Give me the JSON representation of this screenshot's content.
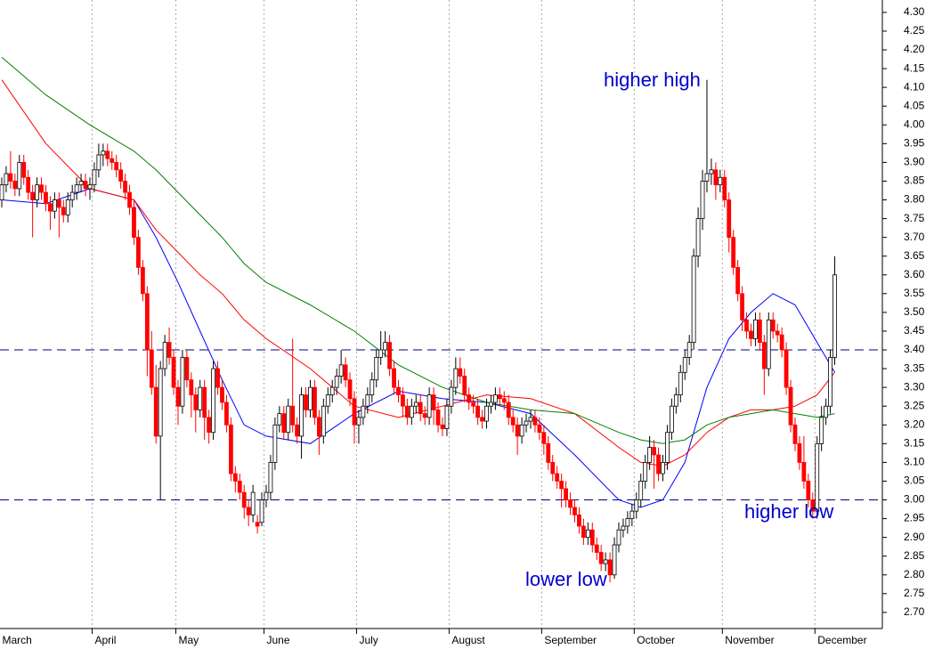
{
  "chart_data": {
    "type": "candlestick",
    "annotations": [
      "higher high",
      "lower low",
      "higher low"
    ],
    "xlim": [
      -0.4,
      199.6
    ],
    "ylim": [
      2.657,
      4.333
    ],
    "xticks": [
      {
        "value": -0.5,
        "label": "March"
      },
      {
        "value": 20.5,
        "label": "April"
      },
      {
        "value": 39.5,
        "label": "May"
      },
      {
        "value": 59.5,
        "label": "June"
      },
      {
        "value": 80.5,
        "label": "July"
      },
      {
        "value": 101.5,
        "label": "August"
      },
      {
        "value": 122.5,
        "label": "September"
      },
      {
        "value": 143.5,
        "label": "October"
      },
      {
        "value": 163.5,
        "label": "November"
      },
      {
        "value": 184.5,
        "label": "December"
      }
    ],
    "yticks": [
      {
        "value": 2.7,
        "label": "2.70"
      },
      {
        "value": 2.75,
        "label": "2.75"
      },
      {
        "value": 2.8,
        "label": "2.80"
      },
      {
        "value": 2.85,
        "label": "2.85"
      },
      {
        "value": 2.9,
        "label": "2.90"
      },
      {
        "value": 2.95,
        "label": "2.95"
      },
      {
        "value": 3.0,
        "label": "3.00"
      },
      {
        "value": 3.05,
        "label": "3.05"
      },
      {
        "value": 3.1,
        "label": "3.10"
      },
      {
        "value": 3.15,
        "label": "3.15"
      },
      {
        "value": 3.2,
        "label": "3.20"
      },
      {
        "value": 3.25,
        "label": "3.25"
      },
      {
        "value": 3.3,
        "label": "3.30"
      },
      {
        "value": 3.35,
        "label": "3.35"
      },
      {
        "value": 3.4,
        "label": "3.40"
      },
      {
        "value": 3.45,
        "label": "3.45"
      },
      {
        "value": 3.5,
        "label": "3.50"
      },
      {
        "value": 3.55,
        "label": "3.55"
      },
      {
        "value": 3.6,
        "label": "3.60"
      },
      {
        "value": 3.65,
        "label": "3.65"
      },
      {
        "value": 3.7,
        "label": "3.70"
      },
      {
        "value": 3.75,
        "label": "3.75"
      },
      {
        "value": 3.8,
        "label": "3.80"
      },
      {
        "value": 3.85,
        "label": "3.85"
      },
      {
        "value": 3.9,
        "label": "3.90"
      },
      {
        "value": 3.95,
        "label": "3.95"
      },
      {
        "value": 4.0,
        "label": "4.00"
      },
      {
        "value": 4.05,
        "label": "4.05"
      },
      {
        "value": 4.1,
        "label": "4.10"
      },
      {
        "value": 4.15,
        "label": "4.15"
      },
      {
        "value": 4.2,
        "label": "4.20"
      },
      {
        "value": 4.25,
        "label": "4.25"
      },
      {
        "value": 4.3,
        "label": "4.30"
      }
    ],
    "hlines": [
      3.4,
      3.0
    ],
    "hline_color": "#000080",
    "up_color": "#ffffff",
    "down_color": "#ff0000",
    "grid": true,
    "candles": [
      [
        3.8,
        3.86,
        3.78,
        3.84
      ],
      [
        3.84,
        3.89,
        3.82,
        3.87
      ],
      [
        3.87,
        3.93,
        3.83,
        3.85
      ],
      [
        3.85,
        3.87,
        3.81,
        3.83
      ],
      [
        3.83,
        3.92,
        3.81,
        3.9
      ],
      [
        3.9,
        3.92,
        3.84,
        3.86
      ],
      [
        3.86,
        3.88,
        3.8,
        3.82
      ],
      [
        3.82,
        3.84,
        3.7,
        3.8
      ],
      [
        3.8,
        3.86,
        3.78,
        3.84
      ],
      [
        3.84,
        3.86,
        3.8,
        3.82
      ],
      [
        3.82,
        3.84,
        3.77,
        3.79
      ],
      [
        3.79,
        3.81,
        3.72,
        3.77
      ],
      [
        3.77,
        3.82,
        3.75,
        3.8
      ],
      [
        3.8,
        3.82,
        3.7,
        3.78
      ],
      [
        3.78,
        3.8,
        3.74,
        3.76
      ],
      [
        3.76,
        3.82,
        3.74,
        3.8
      ],
      [
        3.8,
        3.84,
        3.78,
        3.82
      ],
      [
        3.82,
        3.86,
        3.8,
        3.84
      ],
      [
        3.84,
        3.87,
        3.82,
        3.85
      ],
      [
        3.85,
        3.87,
        3.81,
        3.83
      ],
      [
        3.83,
        3.86,
        3.8,
        3.84
      ],
      [
        3.84,
        3.9,
        3.82,
        3.88
      ],
      [
        3.88,
        3.95,
        3.86,
        3.92
      ],
      [
        3.92,
        3.95,
        3.89,
        3.93
      ],
      [
        3.93,
        3.95,
        3.89,
        3.91
      ],
      [
        3.91,
        3.93,
        3.88,
        3.9
      ],
      [
        3.9,
        3.92,
        3.86,
        3.88
      ],
      [
        3.88,
        3.9,
        3.83,
        3.85
      ],
      [
        3.85,
        3.87,
        3.8,
        3.82
      ],
      [
        3.82,
        3.84,
        3.76,
        3.78
      ],
      [
        3.78,
        3.8,
        3.68,
        3.7
      ],
      [
        3.7,
        3.72,
        3.6,
        3.62
      ],
      [
        3.62,
        3.64,
        3.53,
        3.55
      ],
      [
        3.55,
        3.57,
        3.33,
        3.4
      ],
      [
        3.4,
        3.45,
        3.28,
        3.3
      ],
      [
        3.3,
        3.36,
        3.15,
        3.17
      ],
      [
        3.17,
        3.37,
        3.0,
        3.35
      ],
      [
        3.35,
        3.44,
        3.33,
        3.42
      ],
      [
        3.42,
        3.46,
        3.36,
        3.38
      ],
      [
        3.38,
        3.4,
        3.28,
        3.3
      ],
      [
        3.3,
        3.32,
        3.2,
        3.25
      ],
      [
        3.25,
        3.4,
        3.23,
        3.38
      ],
      [
        3.38,
        3.4,
        3.3,
        3.32
      ],
      [
        3.32,
        3.34,
        3.22,
        3.28
      ],
      [
        3.28,
        3.3,
        3.18,
        3.24
      ],
      [
        3.24,
        3.32,
        3.22,
        3.3
      ],
      [
        3.3,
        3.32,
        3.16,
        3.22
      ],
      [
        3.22,
        3.24,
        3.15,
        3.18
      ],
      [
        3.18,
        3.37,
        3.16,
        3.35
      ],
      [
        3.35,
        3.37,
        3.28,
        3.3
      ],
      [
        3.3,
        3.32,
        3.24,
        3.26
      ],
      [
        3.26,
        3.28,
        3.18,
        3.2
      ],
      [
        3.2,
        3.22,
        3.05,
        3.07
      ],
      [
        3.07,
        3.09,
        3.02,
        3.05
      ],
      [
        3.05,
        3.07,
        3.0,
        3.02
      ],
      [
        3.02,
        3.04,
        2.95,
        2.98
      ],
      [
        2.98,
        3.0,
        2.93,
        2.96
      ],
      [
        2.96,
        3.04,
        2.94,
        3.02
      ],
      [
        2.94,
        2.96,
        2.91,
        2.93
      ],
      [
        2.94,
        3.02,
        2.93,
        3.0
      ],
      [
        3.0,
        3.04,
        2.98,
        3.02
      ],
      [
        3.02,
        3.12,
        3.0,
        3.1
      ],
      [
        3.1,
        3.22,
        3.08,
        3.2
      ],
      [
        3.2,
        3.25,
        3.18,
        3.23
      ],
      [
        3.23,
        3.25,
        3.16,
        3.18
      ],
      [
        3.18,
        3.27,
        3.16,
        3.25
      ],
      [
        3.25,
        3.43,
        3.18,
        3.2
      ],
      [
        3.2,
        3.22,
        3.15,
        3.17
      ],
      [
        3.17,
        3.3,
        3.11,
        3.28
      ],
      [
        3.28,
        3.3,
        3.22,
        3.24
      ],
      [
        3.24,
        3.32,
        3.22,
        3.3
      ],
      [
        3.3,
        3.32,
        3.2,
        3.22
      ],
      [
        3.22,
        3.24,
        3.12,
        3.17
      ],
      [
        3.17,
        3.27,
        3.15,
        3.25
      ],
      [
        3.25,
        3.3,
        3.23,
        3.28
      ],
      [
        3.28,
        3.32,
        3.26,
        3.3
      ],
      [
        3.3,
        3.35,
        3.28,
        3.33
      ],
      [
        3.33,
        3.4,
        3.31,
        3.36
      ],
      [
        3.36,
        3.38,
        3.3,
        3.32
      ],
      [
        3.32,
        3.34,
        3.25,
        3.27
      ],
      [
        3.27,
        3.29,
        3.15,
        3.2
      ],
      [
        3.2,
        3.24,
        3.15,
        3.22
      ],
      [
        3.22,
        3.27,
        3.2,
        3.25
      ],
      [
        3.25,
        3.3,
        3.23,
        3.28
      ],
      [
        3.28,
        3.34,
        3.26,
        3.32
      ],
      [
        3.32,
        3.4,
        3.3,
        3.38
      ],
      [
        3.38,
        3.45,
        3.36,
        3.4
      ],
      [
        3.4,
        3.45,
        3.38,
        3.42
      ],
      [
        3.42,
        3.44,
        3.33,
        3.35
      ],
      [
        3.35,
        3.37,
        3.28,
        3.3
      ],
      [
        3.3,
        3.32,
        3.26,
        3.28
      ],
      [
        3.28,
        3.3,
        3.22,
        3.25
      ],
      [
        3.25,
        3.27,
        3.2,
        3.22
      ],
      [
        3.22,
        3.27,
        3.2,
        3.25
      ],
      [
        3.25,
        3.28,
        3.23,
        3.26
      ],
      [
        3.26,
        3.28,
        3.21,
        3.23
      ],
      [
        3.23,
        3.25,
        3.2,
        3.22
      ],
      [
        3.22,
        3.3,
        3.2,
        3.28
      ],
      [
        3.28,
        3.3,
        3.2,
        3.24
      ],
      [
        3.24,
        3.26,
        3.18,
        3.2
      ],
      [
        3.2,
        3.22,
        3.17,
        3.19
      ],
      [
        3.19,
        3.27,
        3.17,
        3.25
      ],
      [
        3.25,
        3.32,
        3.23,
        3.3
      ],
      [
        3.3,
        3.38,
        3.28,
        3.35
      ],
      [
        3.35,
        3.38,
        3.31,
        3.33
      ],
      [
        3.33,
        3.35,
        3.26,
        3.28
      ],
      [
        3.28,
        3.3,
        3.24,
        3.26
      ],
      [
        3.26,
        3.28,
        3.23,
        3.25
      ],
      [
        3.25,
        3.27,
        3.2,
        3.22
      ],
      [
        3.22,
        3.24,
        3.19,
        3.21
      ],
      [
        3.21,
        3.27,
        3.19,
        3.25
      ],
      [
        3.25,
        3.28,
        3.23,
        3.26
      ],
      [
        3.26,
        3.3,
        3.24,
        3.28
      ],
      [
        3.28,
        3.3,
        3.25,
        3.27
      ],
      [
        3.27,
        3.29,
        3.24,
        3.26
      ],
      [
        3.26,
        3.28,
        3.2,
        3.22
      ],
      [
        3.22,
        3.24,
        3.18,
        3.2
      ],
      [
        3.2,
        3.22,
        3.12,
        3.17
      ],
      [
        3.17,
        3.22,
        3.15,
        3.2
      ],
      [
        3.2,
        3.23,
        3.18,
        3.21
      ],
      [
        3.21,
        3.24,
        3.19,
        3.22
      ],
      [
        3.22,
        3.24,
        3.18,
        3.2
      ],
      [
        3.2,
        3.22,
        3.16,
        3.18
      ],
      [
        3.18,
        3.2,
        3.12,
        3.15
      ],
      [
        3.15,
        3.17,
        3.08,
        3.1
      ],
      [
        3.1,
        3.12,
        3.05,
        3.07
      ],
      [
        3.07,
        3.09,
        3.03,
        3.05
      ],
      [
        3.05,
        3.07,
        2.98,
        3.03
      ],
      [
        3.03,
        3.05,
        2.98,
        3.0
      ],
      [
        3.0,
        3.02,
        2.96,
        2.98
      ],
      [
        2.98,
        3.0,
        2.94,
        2.96
      ],
      [
        2.96,
        2.98,
        2.91,
        2.93
      ],
      [
        2.93,
        2.95,
        2.88,
        2.9
      ],
      [
        2.9,
        2.94,
        2.88,
        2.92
      ],
      [
        2.92,
        2.94,
        2.86,
        2.88
      ],
      [
        2.88,
        2.9,
        2.84,
        2.86
      ],
      [
        2.86,
        2.88,
        2.81,
        2.83
      ],
      [
        2.83,
        2.86,
        2.81,
        2.84
      ],
      [
        2.84,
        2.86,
        2.78,
        2.8
      ],
      [
        2.8,
        2.9,
        2.79,
        2.88
      ],
      [
        2.88,
        2.94,
        2.86,
        2.92
      ],
      [
        2.92,
        2.95,
        2.9,
        2.93
      ],
      [
        2.93,
        2.97,
        2.91,
        2.95
      ],
      [
        2.95,
        2.99,
        2.93,
        2.97
      ],
      [
        2.97,
        3.02,
        2.95,
        3.0
      ],
      [
        3.0,
        3.07,
        2.98,
        3.05
      ],
      [
        3.05,
        3.12,
        3.03,
        3.1
      ],
      [
        3.1,
        3.17,
        3.08,
        3.14
      ],
      [
        3.14,
        3.16,
        3.03,
        3.12
      ],
      [
        3.12,
        3.14,
        3.05,
        3.07
      ],
      [
        3.07,
        3.12,
        3.05,
        3.1
      ],
      [
        3.1,
        3.2,
        3.08,
        3.18
      ],
      [
        3.18,
        3.27,
        3.16,
        3.25
      ],
      [
        3.25,
        3.3,
        3.23,
        3.28
      ],
      [
        3.28,
        3.36,
        3.26,
        3.34
      ],
      [
        3.34,
        3.4,
        3.32,
        3.38
      ],
      [
        3.38,
        3.44,
        3.36,
        3.42
      ],
      [
        3.42,
        3.67,
        3.4,
        3.65
      ],
      [
        3.65,
        3.78,
        3.62,
        3.75
      ],
      [
        3.75,
        3.88,
        3.72,
        3.85
      ],
      [
        3.85,
        4.12,
        3.82,
        3.87
      ],
      [
        3.87,
        3.91,
        3.84,
        3.88
      ],
      [
        3.88,
        3.9,
        3.8,
        3.84
      ],
      [
        3.84,
        3.88,
        3.82,
        3.86
      ],
      [
        3.86,
        3.88,
        3.78,
        3.8
      ],
      [
        3.8,
        3.82,
        3.66,
        3.7
      ],
      [
        3.7,
        3.72,
        3.6,
        3.62
      ],
      [
        3.62,
        3.64,
        3.53,
        3.55
      ],
      [
        3.55,
        3.57,
        3.45,
        3.48
      ],
      [
        3.48,
        3.5,
        3.43,
        3.45
      ],
      [
        3.45,
        3.47,
        3.41,
        3.43
      ],
      [
        3.43,
        3.5,
        3.41,
        3.48
      ],
      [
        3.48,
        3.5,
        3.4,
        3.42
      ],
      [
        3.42,
        3.44,
        3.28,
        3.35
      ],
      [
        3.35,
        3.5,
        3.33,
        3.48
      ],
      [
        3.48,
        3.5,
        3.43,
        3.45
      ],
      [
        3.45,
        3.47,
        3.42,
        3.44
      ],
      [
        3.44,
        3.46,
        3.38,
        3.4
      ],
      [
        3.4,
        3.42,
        3.28,
        3.3
      ],
      [
        3.3,
        3.32,
        3.18,
        3.2
      ],
      [
        3.2,
        3.22,
        3.13,
        3.15
      ],
      [
        3.15,
        3.17,
        3.08,
        3.1
      ],
      [
        3.1,
        3.17,
        3.03,
        3.05
      ],
      [
        3.05,
        3.07,
        2.98,
        3.0
      ],
      [
        3.0,
        3.02,
        2.95,
        2.97
      ],
      [
        2.97,
        3.17,
        2.95,
        3.15
      ],
      [
        3.15,
        3.25,
        3.13,
        3.22
      ],
      [
        3.22,
        3.27,
        3.2,
        3.25
      ],
      [
        3.25,
        3.4,
        3.23,
        3.38
      ],
      [
        3.38,
        3.65,
        3.36,
        3.6
      ]
    ],
    "ma_x": [
      0,
      10,
      20,
      30,
      35,
      40,
      45,
      50,
      55,
      60,
      70,
      80,
      90,
      100,
      110,
      120,
      130,
      140,
      145,
      150,
      155,
      160,
      165,
      170,
      175,
      180,
      185,
      189
    ],
    "lines": [
      {
        "color": "#0000ff",
        "values": [
          3.8,
          3.79,
          3.83,
          3.8,
          3.7,
          3.58,
          3.45,
          3.32,
          3.2,
          3.17,
          3.15,
          3.23,
          3.29,
          3.27,
          3.26,
          3.23,
          3.12,
          3.0,
          2.98,
          3.0,
          3.1,
          3.3,
          3.43,
          3.5,
          3.55,
          3.52,
          3.42,
          3.34
        ]
      },
      {
        "color": "#ff0000",
        "values": [
          4.12,
          3.95,
          3.83,
          3.8,
          3.72,
          3.66,
          3.6,
          3.55,
          3.48,
          3.43,
          3.35,
          3.25,
          3.22,
          3.25,
          3.28,
          3.27,
          3.23,
          3.14,
          3.1,
          3.09,
          3.12,
          3.18,
          3.22,
          3.24,
          3.24,
          3.25,
          3.28,
          3.34
        ]
      },
      {
        "color": "#008000",
        "values": [
          4.18,
          4.08,
          4.0,
          3.93,
          3.88,
          3.82,
          3.76,
          3.7,
          3.63,
          3.58,
          3.52,
          3.45,
          3.36,
          3.3,
          3.26,
          3.24,
          3.23,
          3.18,
          3.16,
          3.15,
          3.16,
          3.2,
          3.22,
          3.23,
          3.24,
          3.23,
          3.22,
          3.23
        ]
      }
    ]
  }
}
